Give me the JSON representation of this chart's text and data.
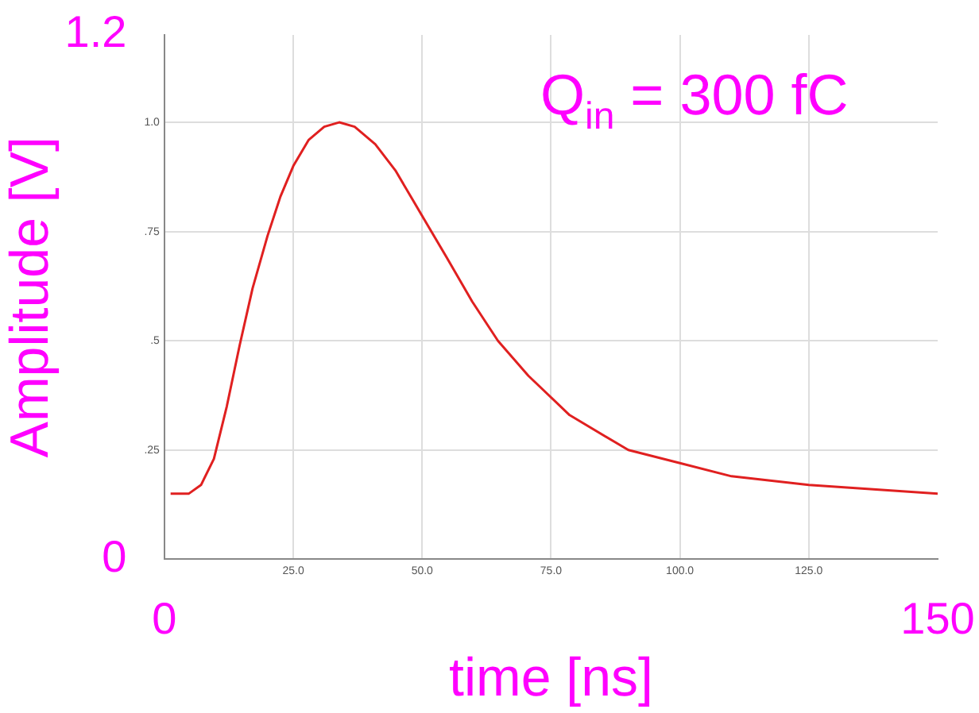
{
  "chart_data": {
    "type": "line",
    "xlabel": "time [ns]",
    "ylabel": "Amplitude [V]",
    "annotations": [
      "Q$_{in}$ = 300 fC"
    ],
    "xlim": [
      0,
      150
    ],
    "ylim": [
      0,
      1.2
    ],
    "xticks": [
      {
        "value": 25,
        "label": "25.0"
      },
      {
        "value": 50,
        "label": "50.0"
      },
      {
        "value": 75,
        "label": "75.0"
      },
      {
        "value": 100,
        "label": "100.0"
      },
      {
        "value": 125,
        "label": "125.0"
      }
    ],
    "y2ticks": [
      {
        "value": 0.25,
        "label": ".25"
      },
      {
        "value": 0.5,
        "label": ".5"
      },
      {
        "value": 0.75,
        "label": ".75"
      },
      {
        "value": 1,
        "label": "1.0"
      }
    ],
    "x2lim": [
      0,
      150
    ],
    "x2ticks": [
      0,
      150
    ],
    "y2lim": [
      0,
      1.2
    ],
    "yticks": [
      0,
      1.2
    ],
    "grid": true,
    "marker": "none",
    "line_style": "solid",
    "series": [
      {
        "color": "#e02020",
        "x": [
          1.2,
          4.7,
          7.1,
          9.6,
          12.1,
          14.6,
          17.1,
          20.0,
          22.5,
          25.0,
          28.0,
          31.0,
          33.9,
          36.9,
          40.9,
          44.8,
          49.8,
          54.8,
          59.7,
          64.7,
          70.6,
          78.6,
          90,
          100,
          110,
          125,
          150
        ],
        "values": [
          0.15,
          0.15,
          0.17,
          0.23,
          0.35,
          0.49,
          0.62,
          0.74,
          0.83,
          0.9,
          0.96,
          0.99,
          1.0,
          0.99,
          0.95,
          0.89,
          0.79,
          0.69,
          0.59,
          0.5,
          0.42,
          0.33,
          0.25,
          0.22,
          0.19,
          0.17,
          0.15
        ]
      }
    ]
  }
}
